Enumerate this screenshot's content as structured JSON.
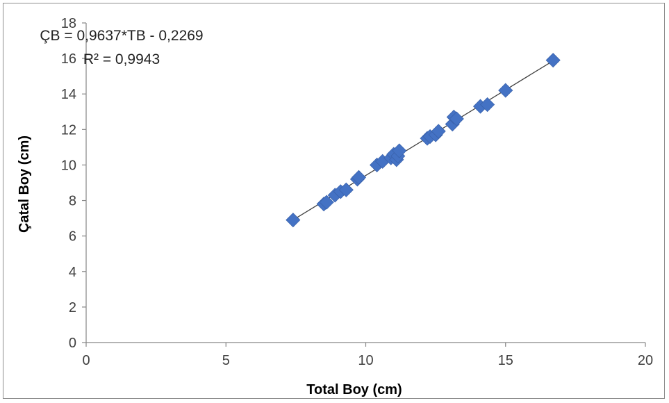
{
  "chart_data": {
    "type": "scatter",
    "xlabel": "Total Boy (cm)",
    "ylabel": "Çatal Boy (cm)",
    "xlim": [
      0,
      20
    ],
    "ylim": [
      0,
      18
    ],
    "xticks": [
      "0",
      "5",
      "10",
      "15",
      "20"
    ],
    "yticks": [
      "0",
      "2",
      "4",
      "6",
      "8",
      "10",
      "12",
      "14",
      "16",
      "18"
    ],
    "grid": false,
    "legend": "none",
    "marker_color": "#4472c4",
    "trendline_color": "#404040",
    "trendline": {
      "slope": 0.9637,
      "intercept": -0.2269,
      "x_range": [
        7.4,
        16.7
      ]
    },
    "annotations": {
      "equation": "ÇB = 0,9637*TB - 0,2269",
      "r_squared": "R² = 0,9943"
    },
    "points": [
      [
        7.4,
        6.9
      ],
      [
        8.5,
        7.8
      ],
      [
        8.6,
        7.9
      ],
      [
        8.9,
        8.3
      ],
      [
        9.1,
        8.5
      ],
      [
        9.3,
        8.6
      ],
      [
        9.7,
        9.2
      ],
      [
        9.75,
        9.3
      ],
      [
        10.4,
        10.0
      ],
      [
        10.6,
        10.2
      ],
      [
        10.9,
        10.4
      ],
      [
        11.0,
        10.6
      ],
      [
        11.1,
        10.3
      ],
      [
        11.15,
        10.5
      ],
      [
        11.2,
        10.8
      ],
      [
        12.2,
        11.5
      ],
      [
        12.3,
        11.6
      ],
      [
        12.5,
        11.7
      ],
      [
        12.6,
        11.9
      ],
      [
        13.1,
        12.3
      ],
      [
        13.15,
        12.7
      ],
      [
        13.25,
        12.6
      ],
      [
        14.1,
        13.3
      ],
      [
        14.35,
        13.4
      ],
      [
        15.0,
        14.2
      ],
      [
        16.7,
        15.9
      ]
    ]
  }
}
